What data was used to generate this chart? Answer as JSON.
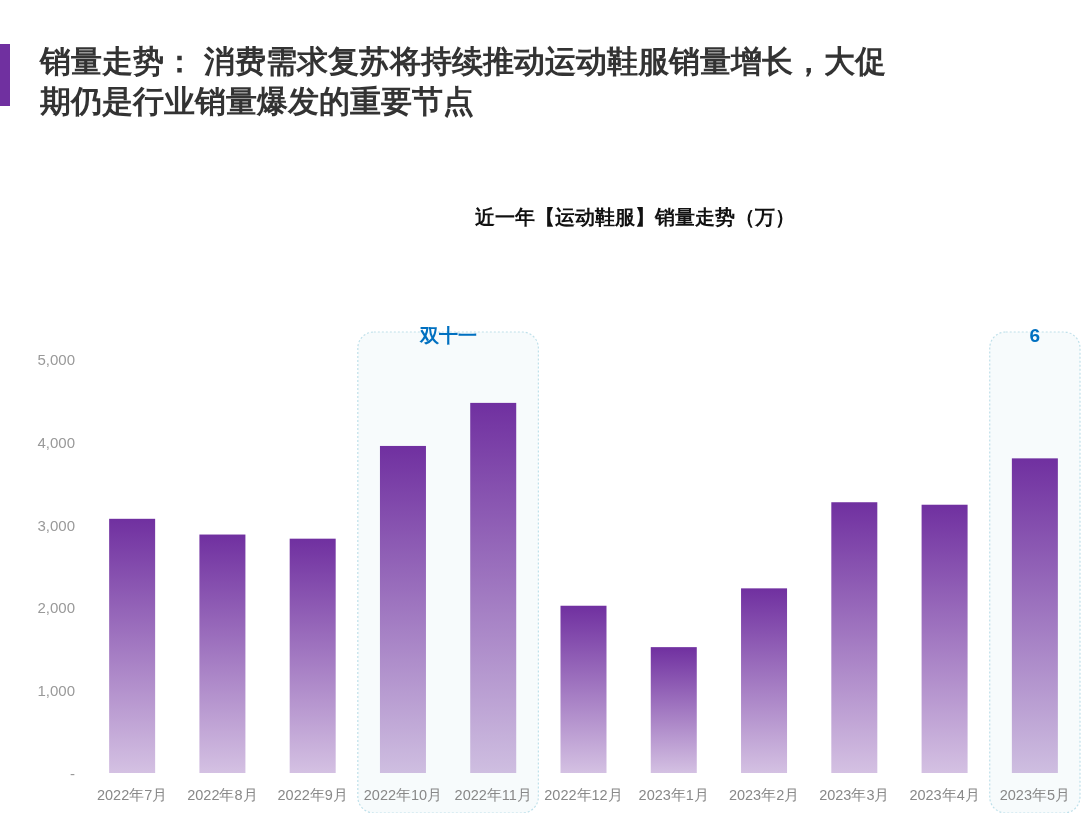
{
  "chart_data": {
    "type": "bar",
    "title": "销量走势： 消费需求复苏将持续推动运动鞋服销量增长，大促期仍是行业销量爆发的重要节点",
    "subtitle": "近一年【运动鞋服】销量走势（万）",
    "categories": [
      "2022年7月",
      "2022年8月",
      "2022年9月",
      "2022年10月",
      "2022年11月",
      "2022年12月",
      "2023年1月",
      "2023年2月",
      "2023年3月",
      "2023年4月",
      "2023年5月"
    ],
    "values": [
      3070,
      2880,
      2830,
      3950,
      4470,
      2020,
      1520,
      2230,
      3270,
      3240,
      3800
    ],
    "color": "#7030a0",
    "ylim": [
      0,
      5000
    ],
    "yticks": [
      {
        "value": 0,
        "label": "-"
      },
      {
        "value": 1000,
        "label": "1,000"
      },
      {
        "value": 2000,
        "label": "2,000"
      },
      {
        "value": 3000,
        "label": "3,000"
      },
      {
        "value": 4000,
        "label": "4,000"
      },
      {
        "value": 5000,
        "label": "5,000"
      }
    ],
    "bands": [
      {
        "axis": "x",
        "from": "2022年10月",
        "to": "2022年11月",
        "label": "双十一",
        "color": "#bfe0ea"
      },
      {
        "axis": "x",
        "from": "2023年5月",
        "to": "2023年5月",
        "label": "6",
        "color": "#bfe0ea"
      }
    ]
  }
}
